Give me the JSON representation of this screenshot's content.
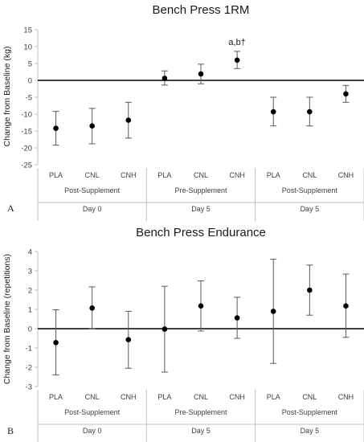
{
  "chart_data": [
    {
      "panel": "A",
      "type": "scatter",
      "title": "Bench Press 1RM",
      "ylabel": "Change from Baseline (kg)",
      "ylim": [
        -25,
        15
      ],
      "yticks": [
        -25,
        -20,
        -15,
        -10,
        -5,
        0,
        5,
        10,
        15
      ],
      "categories": [
        "PLA",
        "CNL",
        "CNH",
        "PLA",
        "CNL",
        "CNH",
        "PLA",
        "CNL",
        "CNH"
      ],
      "groups": [
        {
          "label": "Post-Supplement",
          "day": "Day 0",
          "start": 0,
          "end": 2
        },
        {
          "label": "Pre-Supplement",
          "day": "Day 5",
          "start": 3,
          "end": 5
        },
        {
          "label": "Post-Supplement",
          "day": "Day 5",
          "start": 6,
          "end": 8
        }
      ],
      "values": [
        -14.2,
        -13.5,
        -11.8,
        0.6,
        1.9,
        6.0,
        -9.3,
        -9.3,
        -4.0
      ],
      "err_low": [
        -19.2,
        -18.8,
        -17.1,
        -1.4,
        -1.0,
        3.5,
        -13.5,
        -13.5,
        -6.5
      ],
      "err_high": [
        -9.2,
        -8.3,
        -6.5,
        2.8,
        4.8,
        8.6,
        -5.0,
        -5.0,
        -1.5
      ],
      "annotations": [
        {
          "index": 5,
          "text": "a,b†"
        }
      ]
    },
    {
      "panel": "B",
      "type": "scatter",
      "title": "Bench Press Endurance",
      "ylabel": "Change from Baseline (repetitions)",
      "ylim": [
        -3,
        4
      ],
      "yticks": [
        -3,
        -2,
        -1,
        0,
        1,
        2,
        3,
        4
      ],
      "categories": [
        "PLA",
        "CNL",
        "CNH",
        "PLA",
        "CNL",
        "CNH",
        "PLA",
        "CNL",
        "CNH"
      ],
      "groups": [
        {
          "label": "Post-Supplement",
          "day": "Day 0",
          "start": 0,
          "end": 2
        },
        {
          "label": "Pre-Supplement",
          "day": "Day 5",
          "start": 3,
          "end": 5
        },
        {
          "label": "Post-Supplement",
          "day": "Day 5",
          "start": 6,
          "end": 8
        }
      ],
      "values": [
        -0.72,
        1.07,
        -0.57,
        -0.02,
        1.18,
        0.56,
        0.9,
        2.0,
        1.18
      ],
      "err_low": [
        -2.4,
        0.0,
        -2.05,
        -2.25,
        -0.12,
        -0.5,
        -1.8,
        0.7,
        -0.45
      ],
      "err_high": [
        0.98,
        2.17,
        0.9,
        2.2,
        2.48,
        1.63,
        3.6,
        3.3,
        2.83
      ],
      "annotations": []
    }
  ]
}
